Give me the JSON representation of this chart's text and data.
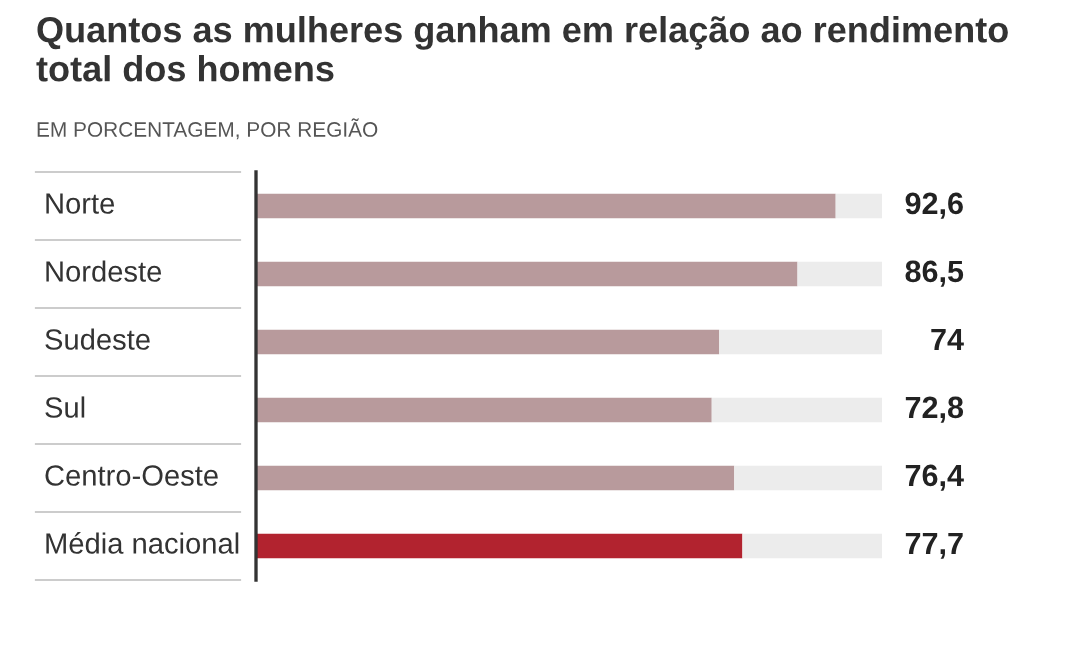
{
  "chart_data": {
    "type": "bar",
    "orientation": "horizontal",
    "stacked": true,
    "title": "Quantos as mulheres ganham em relação ao rendimento total dos homens",
    "subtitle": "EM PORCENTAGEM, POR REGIÃO",
    "categories": [
      "Norte",
      "Nordeste",
      "Sudeste",
      "Sul",
      "Centro-Oeste",
      "Média nacional"
    ],
    "series": [
      {
        "colors": [
          "#b89a9c",
          "#b89a9c",
          "#b89a9c",
          "#b89a9c",
          "#b89a9c",
          "#b2232f"
        ],
        "values": [
          92.6,
          86.5,
          74,
          72.8,
          76.4,
          77.7
        ],
        "value_labels": [
          "92,6",
          "86,5",
          "74",
          "72,8",
          "76,4",
          "77,7"
        ]
      },
      {
        "color": "#ececec",
        "values": [
          7.4,
          13.5,
          26,
          27.2,
          23.6,
          22.3
        ]
      }
    ]
  }
}
